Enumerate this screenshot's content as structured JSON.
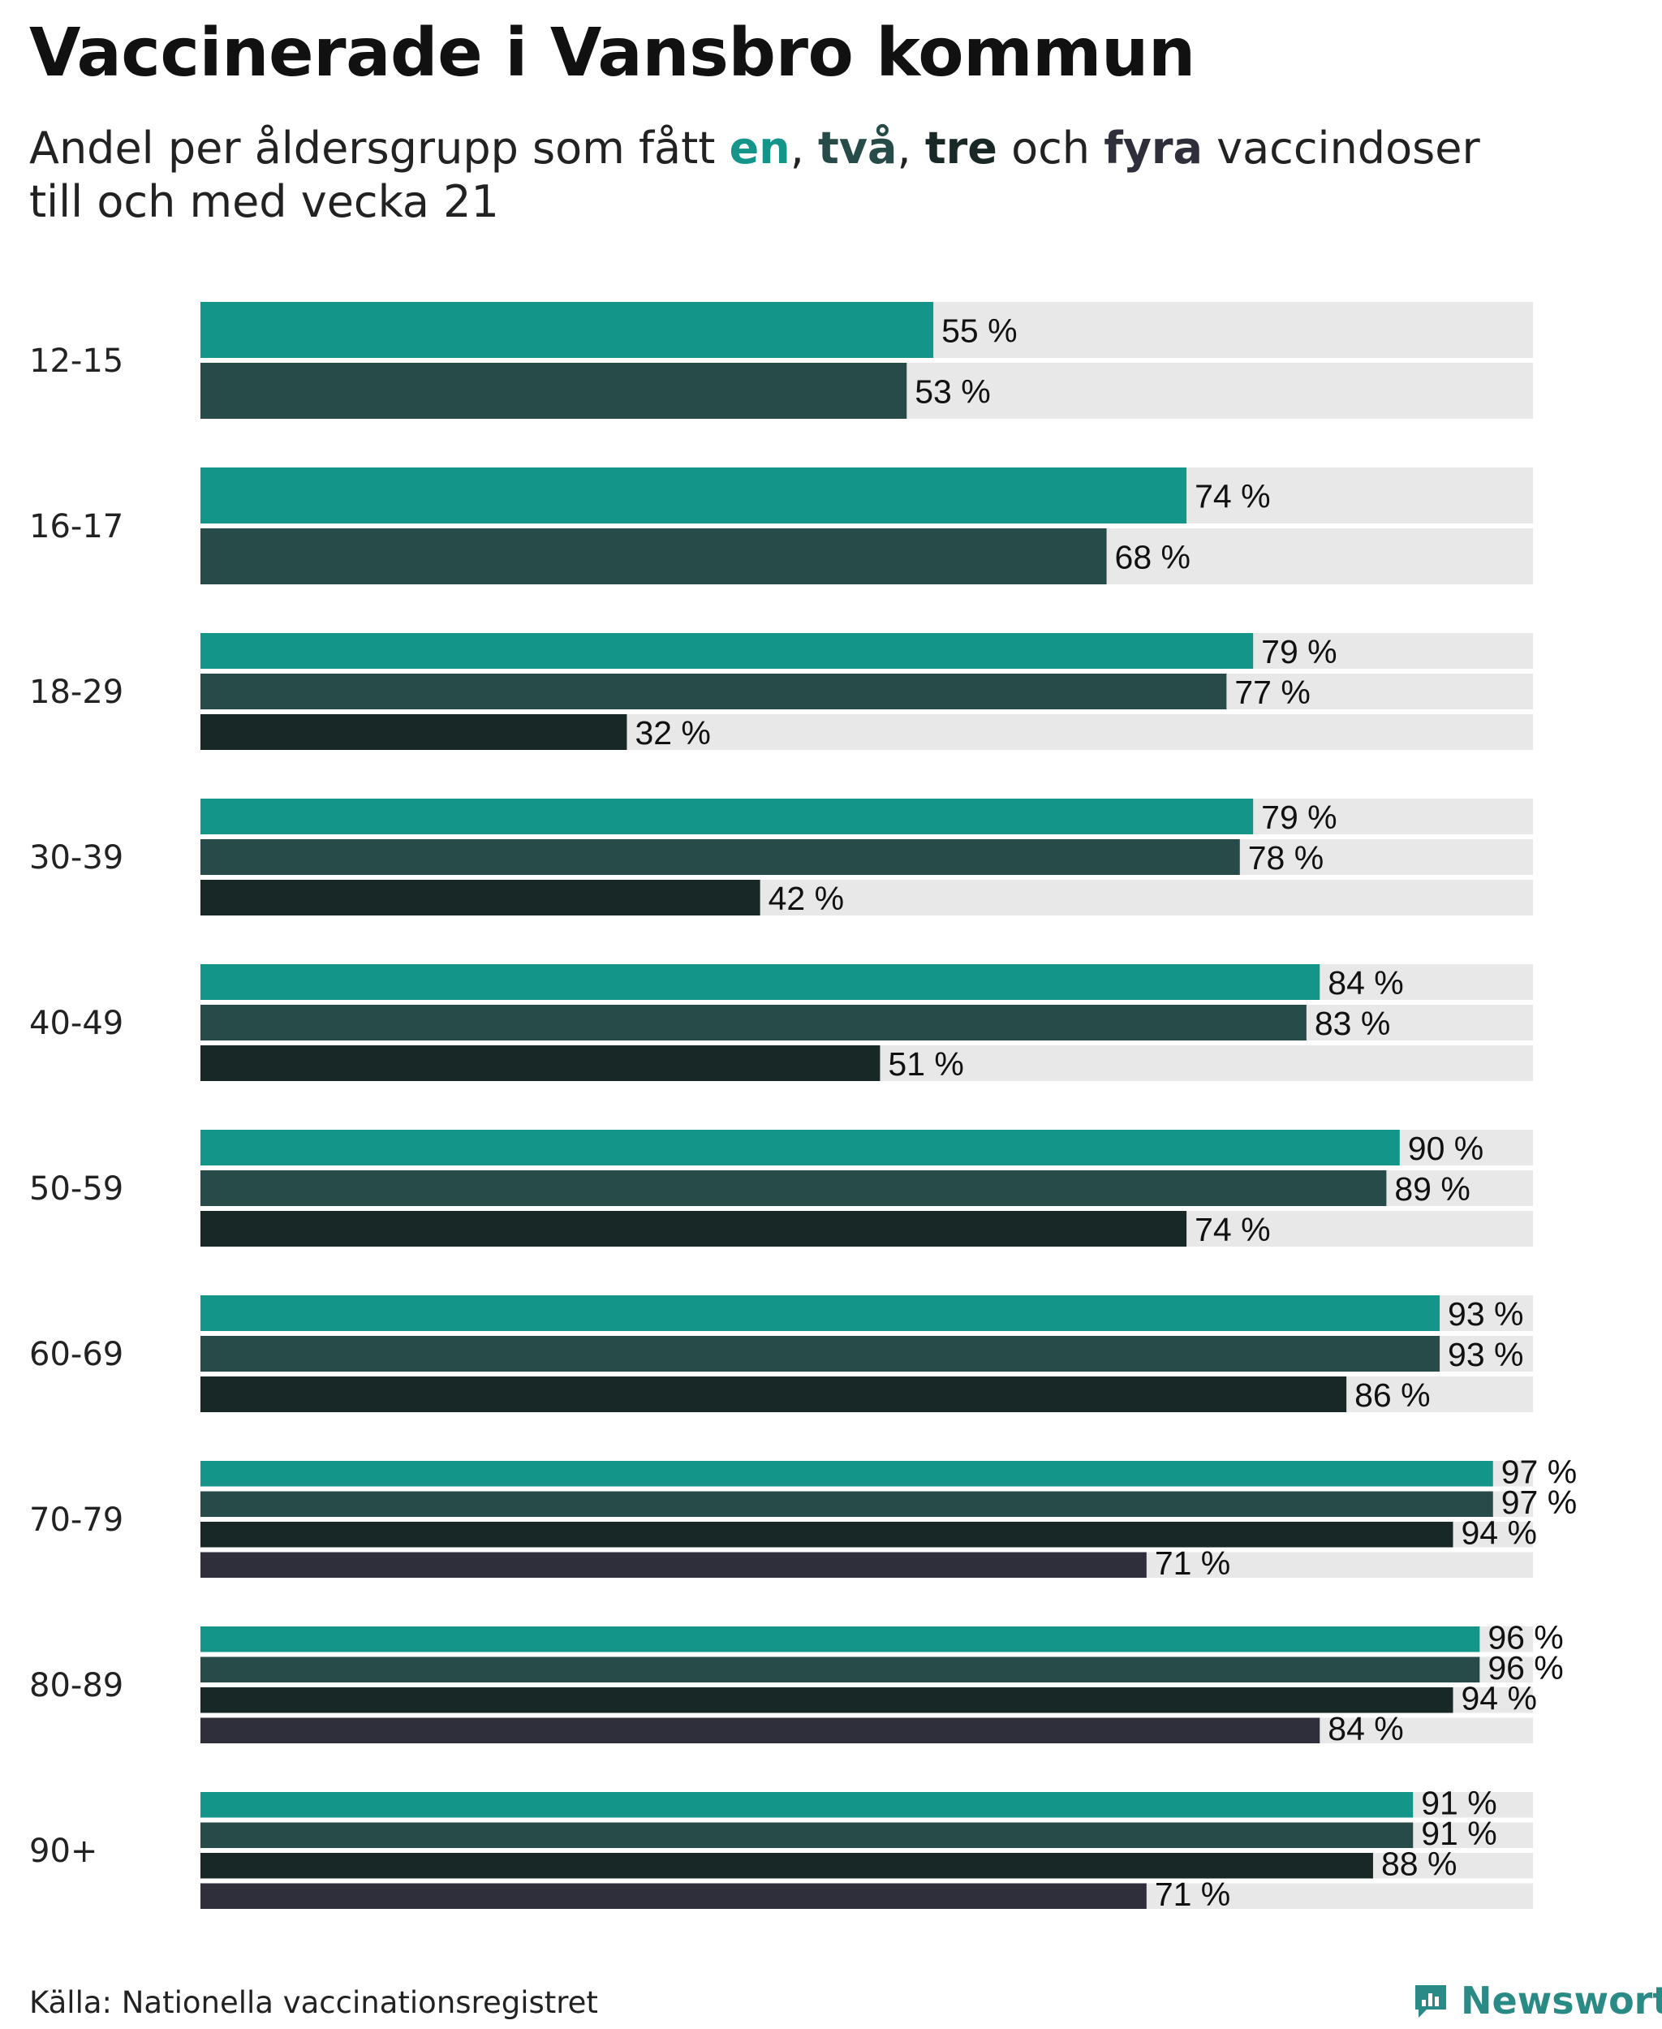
{
  "title": "Vaccinerade i Vansbro kommun",
  "subtitle": {
    "prefix": "Andel per åldersgrupp som fått ",
    "dose1": "en",
    "sep1": ", ",
    "dose2": "två",
    "sep2": ", ",
    "dose3": "tre",
    "mid": " och ",
    "dose4": "fyra",
    "suffix": " vaccindoser",
    "line2": "till och med vecka 21"
  },
  "colors": {
    "dose1": "#13958a",
    "dose2": "#264b48",
    "dose3": "#182826",
    "dose4": "#2e2f3b",
    "track": "#e8e8e8"
  },
  "chart_data": {
    "type": "bar",
    "orientation": "horizontal",
    "title": "Vaccinerade i Vansbro kommun",
    "xlim": [
      0,
      100
    ],
    "value_suffix": " %",
    "categories": [
      "12-15",
      "16-17",
      "18-29",
      "30-39",
      "40-49",
      "50-59",
      "60-69",
      "70-79",
      "80-89",
      "90+"
    ],
    "series": [
      {
        "name": "en",
        "values": [
          55,
          74,
          79,
          79,
          84,
          90,
          93,
          97,
          96,
          91
        ]
      },
      {
        "name": "två",
        "values": [
          53,
          68,
          77,
          78,
          83,
          89,
          93,
          97,
          96,
          91
        ]
      },
      {
        "name": "tre",
        "values": [
          null,
          null,
          32,
          42,
          51,
          74,
          86,
          94,
          94,
          88
        ]
      },
      {
        "name": "fyra",
        "values": [
          null,
          null,
          null,
          null,
          null,
          null,
          null,
          71,
          84,
          71
        ]
      }
    ]
  },
  "source": "Källa: Nationella vaccinationsregistret",
  "brand": {
    "name": "Newsworthy",
    "icon": "newsworthy-logo-icon"
  }
}
